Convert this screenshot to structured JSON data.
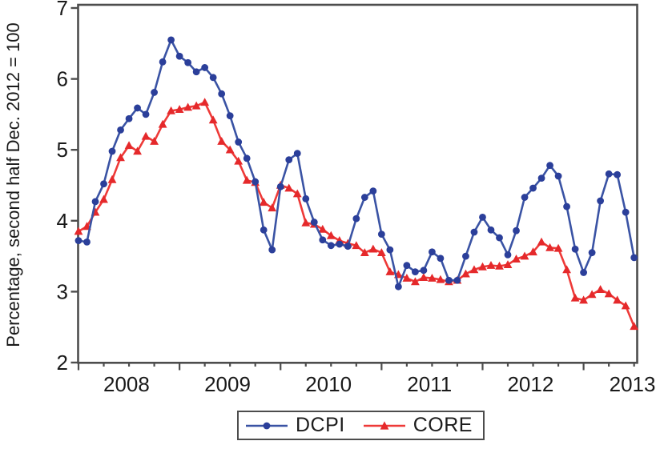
{
  "figure": {
    "background": "#ffffff"
  },
  "chart_data": {
    "type": "line",
    "title": "",
    "xlabel": "",
    "ylabel": "Percentage, second half Dec. 2012 = 100",
    "ylim": [
      2,
      7
    ],
    "y_ticks": [
      2,
      3,
      4,
      5,
      6,
      7
    ],
    "x_unit": "month-index",
    "x_range_months": [
      0,
      66
    ],
    "x_major_tick_months": [
      0,
      12,
      24,
      36,
      48,
      60
    ],
    "x_minor_tick_every_months": 3,
    "x_year_labels": [
      {
        "label": "2008",
        "month": 5.7
      },
      {
        "label": "2009",
        "month": 17.7
      },
      {
        "label": "2010",
        "month": 29.7
      },
      {
        "label": "2011",
        "month": 41.7
      },
      {
        "label": "2012",
        "month": 53.7
      },
      {
        "label": "2013",
        "month": 65.8
      }
    ],
    "grid": "off",
    "legend_position": "bottom-center",
    "axis_color": "#4d4d4d",
    "text_color": "#1a1a1a",
    "series": [
      {
        "name": "DCPI",
        "marker": "circle",
        "line_color": "#3a53a4",
        "marker_color": "#2b3f9a",
        "values": [
          3.72,
          3.7,
          4.27,
          4.52,
          4.98,
          5.28,
          5.44,
          5.59,
          5.5,
          5.81,
          6.24,
          6.55,
          6.32,
          6.23,
          6.1,
          6.16,
          6.02,
          5.79,
          5.48,
          5.11,
          4.88,
          4.55,
          3.87,
          3.59,
          4.48,
          4.86,
          4.95,
          4.31,
          3.98,
          3.73,
          3.65,
          3.67,
          3.64,
          4.03,
          4.33,
          4.42,
          3.81,
          3.59,
          3.07,
          3.37,
          3.28,
          3.3,
          3.56,
          3.47,
          3.16,
          3.16,
          3.5,
          3.84,
          4.05,
          3.87,
          3.76,
          3.52,
          3.86,
          4.33,
          4.46,
          4.6,
          4.78,
          4.63,
          4.2,
          3.6,
          3.27,
          3.55,
          4.28,
          4.66,
          4.65,
          4.12,
          3.48
        ]
      },
      {
        "name": "CORE",
        "marker": "triangle",
        "line_color": "#ee3a38",
        "marker_color": "#e5292b",
        "values": [
          3.85,
          3.92,
          4.12,
          4.3,
          4.58,
          4.89,
          5.06,
          4.98,
          5.19,
          5.12,
          5.36,
          5.55,
          5.57,
          5.6,
          5.62,
          5.67,
          5.42,
          5.12,
          5.0,
          4.84,
          4.57,
          4.54,
          4.26,
          4.18,
          4.5,
          4.46,
          4.38,
          3.97,
          3.95,
          3.88,
          3.79,
          3.72,
          3.68,
          3.65,
          3.55,
          3.6,
          3.55,
          3.28,
          3.24,
          3.19,
          3.14,
          3.2,
          3.19,
          3.17,
          3.14,
          3.16,
          3.25,
          3.31,
          3.35,
          3.37,
          3.36,
          3.38,
          3.46,
          3.5,
          3.56,
          3.7,
          3.62,
          3.61,
          3.31,
          2.91,
          2.88,
          2.96,
          3.03,
          2.97,
          2.88,
          2.8,
          2.51
        ]
      }
    ]
  },
  "legend": {
    "items": [
      "DCPI",
      "CORE"
    ]
  }
}
